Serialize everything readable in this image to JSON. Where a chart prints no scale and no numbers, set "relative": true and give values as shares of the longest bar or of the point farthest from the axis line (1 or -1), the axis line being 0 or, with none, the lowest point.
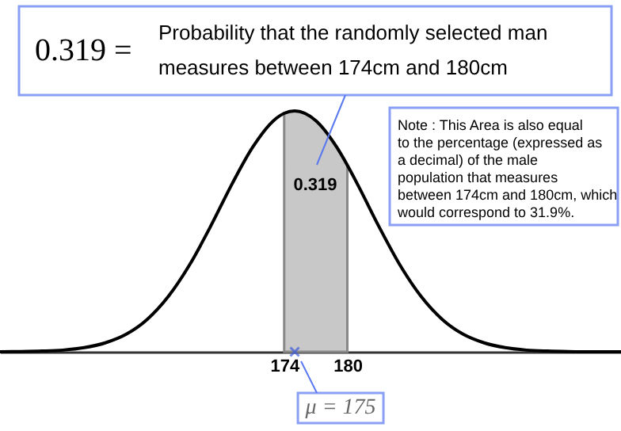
{
  "chart_data": {
    "type": "line",
    "relative": true,
    "annotations": [
      "0.319 = Probability that the randomly selected man measures between 174cm and 180cm",
      "0.319",
      "Note : This Area is also equal to the percentage (expressed as a decimal) of the male population that measures between 174cm and 180cm, which would correspond to 31.9%.",
      {
        "text": "μ = 175",
        "x": 175,
        "y": 0
      }
    ],
    "xlim": [
      147,
      206
    ],
    "xticks": [
      174,
      180
    ],
    "series": [
      {
        "type": "area",
        "color": "#c8c8c8",
        "x": [
          174,
          175,
          177,
          179,
          180
        ],
        "values": [
          0.99,
          1,
          0.96,
          0.849,
          0.775
        ]
      },
      {
        "color": "#000000",
        "x": [
          147,
          149,
          151,
          153,
          155,
          157,
          159,
          161,
          163,
          165,
          167,
          169,
          171,
          173,
          174,
          175,
          177,
          179,
          180,
          181,
          183,
          185,
          187,
          189,
          191,
          193,
          195,
          197,
          199,
          201,
          203,
          206
        ],
        "values": [
          0.0,
          0.001,
          0.003,
          0.007,
          0.017,
          0.037,
          0.073,
          0.135,
          0.23,
          0.36,
          0.52,
          0.693,
          0.849,
          0.96,
          0.99,
          1,
          0.96,
          0.849,
          0.775,
          0.693,
          0.52,
          0.36,
          0.23,
          0.135,
          0.073,
          0.037,
          0.017,
          0.007,
          0.003,
          0.001,
          0.0,
          0.0
        ]
      },
      {
        "type": "scatter",
        "color": "#3b5bdb",
        "marker": "cross",
        "x": [
          175
        ],
        "values": [
          0
        ]
      }
    ]
  }
}
